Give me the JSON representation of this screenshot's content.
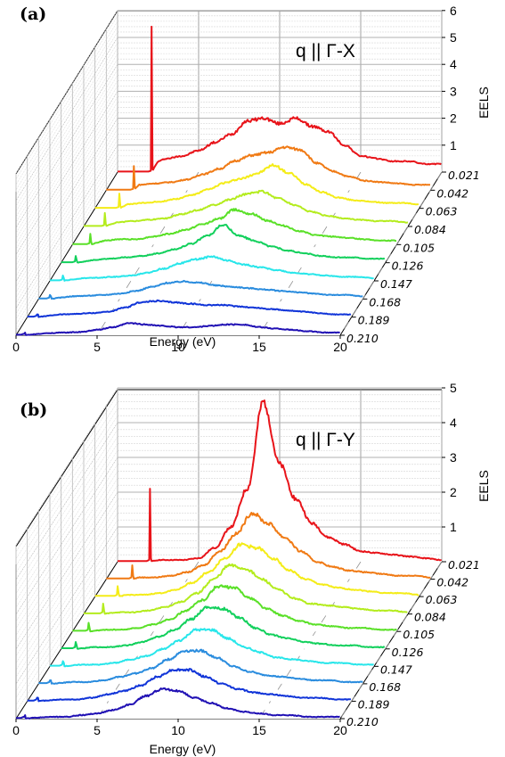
{
  "chart_data": [
    {
      "type": "line",
      "panel_label": "(a)",
      "annotation": "q || Γ-X",
      "xlabel": "Energy (eV)",
      "ylabel": "EELS",
      "zlabel": "",
      "xlim": [
        0,
        20
      ],
      "ylim": [
        0,
        6
      ],
      "x_ticks": [
        "0",
        "5",
        "10",
        "15",
        "20"
      ],
      "y_ticks": [
        "1",
        "2",
        "3",
        "4",
        "5",
        "6"
      ],
      "q_ticks": [
        "0.021",
        "0.042",
        "0.063",
        "0.084",
        "0.105",
        "0.126",
        "0.147",
        "0.168",
        "0.189",
        "0.210"
      ],
      "series": [
        {
          "q": 0.021,
          "color": "#e8141a",
          "sharp_peak": {
            "x": 2.1,
            "y": 5.4
          },
          "x": [
            2.5,
            3,
            4,
            5,
            6,
            7,
            8,
            9,
            10,
            11,
            12,
            13,
            14,
            15,
            16,
            17,
            18,
            19,
            20
          ],
          "values": [
            0.4,
            0.5,
            0.6,
            0.8,
            1.1,
            1.4,
            1.9,
            2.0,
            1.8,
            2.0,
            1.7,
            1.5,
            1.0,
            0.6,
            0.5,
            0.4,
            0.4,
            0.3,
            0.3
          ]
        },
        {
          "q": 0.042,
          "color": "#f07a14",
          "sharp_peak": {
            "x": 1.7,
            "y": 0.9
          },
          "x": [
            2,
            3,
            4,
            5,
            6,
            7,
            8,
            9,
            10,
            11,
            12,
            13,
            14,
            15,
            16,
            17,
            18,
            19,
            20
          ],
          "values": [
            0.2,
            0.25,
            0.3,
            0.4,
            0.6,
            0.8,
            1.1,
            1.3,
            1.4,
            1.6,
            1.5,
            1.0,
            0.7,
            0.5,
            0.35,
            0.3,
            0.25,
            0.2,
            0.2
          ]
        },
        {
          "q": 0.063,
          "color": "#f4ec18",
          "sharp_peak": {
            "x": 1.5,
            "y": 0.55
          },
          "x": [
            2,
            3,
            4,
            5,
            6,
            7,
            8,
            9,
            10,
            11,
            12,
            13,
            14,
            15,
            16,
            17,
            18,
            19,
            20
          ],
          "values": [
            0.15,
            0.2,
            0.25,
            0.35,
            0.5,
            0.7,
            0.95,
            1.1,
            1.3,
            1.6,
            1.3,
            0.9,
            0.6,
            0.4,
            0.3,
            0.25,
            0.2,
            0.2,
            0.15
          ]
        },
        {
          "q": 0.084,
          "color": "#b4ec1e",
          "sharp_peak": {
            "x": 1.3,
            "y": 0.5
          },
          "x": [
            2,
            3,
            4,
            5,
            6,
            7,
            8,
            9,
            10,
            11,
            12,
            13,
            14,
            15,
            16,
            17,
            18,
            19,
            20
          ],
          "values": [
            0.15,
            0.2,
            0.25,
            0.3,
            0.45,
            0.6,
            0.8,
            1.0,
            1.2,
            1.3,
            1.05,
            0.8,
            0.55,
            0.4,
            0.3,
            0.25,
            0.2,
            0.2,
            0.15
          ]
        },
        {
          "q": 0.105,
          "color": "#5ae028",
          "sharp_peak": {
            "x": 1.1,
            "y": 0.4
          },
          "x": [
            2,
            3,
            4,
            5,
            6,
            7,
            8,
            9,
            10,
            11,
            12,
            13,
            14,
            15,
            16,
            17,
            18,
            19,
            20
          ],
          "values": [
            0.15,
            0.2,
            0.2,
            0.3,
            0.4,
            0.55,
            0.75,
            0.95,
            1.3,
            1.15,
            0.9,
            0.7,
            0.5,
            0.35,
            0.3,
            0.25,
            0.2,
            0.15,
            0.15
          ]
        },
        {
          "q": 0.126,
          "color": "#12d05c",
          "sharp_peak": {
            "x": 0.9,
            "y": 0.25
          },
          "x": [
            2,
            3,
            4,
            5,
            6,
            7,
            8,
            9,
            10,
            11,
            12,
            13,
            14,
            15,
            16,
            17,
            18,
            19,
            20
          ],
          "values": [
            0.1,
            0.15,
            0.2,
            0.25,
            0.35,
            0.5,
            0.7,
            1.0,
            1.4,
            1.0,
            0.8,
            0.6,
            0.45,
            0.35,
            0.25,
            0.2,
            0.2,
            0.15,
            0.15
          ]
        },
        {
          "q": 0.147,
          "color": "#28e6ea",
          "sharp_peak": {
            "x": 0.8,
            "y": 0.2
          },
          "x": [
            2,
            3,
            4,
            5,
            6,
            7,
            8,
            9,
            10,
            11,
            12,
            13,
            14,
            15,
            16,
            17,
            18,
            19,
            20
          ],
          "values": [
            0.1,
            0.12,
            0.15,
            0.2,
            0.3,
            0.45,
            0.65,
            0.8,
            0.9,
            0.75,
            0.6,
            0.5,
            0.4,
            0.3,
            0.25,
            0.2,
            0.15,
            0.15,
            0.1
          ]
        },
        {
          "q": 0.168,
          "color": "#2a8cde",
          "sharp_peak": {
            "x": 0.7,
            "y": 0.15
          },
          "x": [
            2,
            3,
            4,
            5,
            6,
            7,
            8,
            9,
            10,
            11,
            12,
            13,
            14,
            15,
            16,
            17,
            18,
            19,
            20
          ],
          "values": [
            0.1,
            0.12,
            0.15,
            0.2,
            0.3,
            0.45,
            0.6,
            0.65,
            0.6,
            0.5,
            0.45,
            0.4,
            0.35,
            0.3,
            0.25,
            0.2,
            0.15,
            0.15,
            0.1
          ]
        },
        {
          "q": 0.189,
          "color": "#1034d8",
          "sharp_peak": {
            "x": 0.6,
            "y": 0.1
          },
          "x": [
            2,
            3,
            4,
            5,
            6,
            7,
            8,
            9,
            10,
            11,
            12,
            13,
            14,
            15,
            16,
            17,
            18,
            19,
            20
          ],
          "values": [
            0.1,
            0.12,
            0.15,
            0.2,
            0.35,
            0.55,
            0.6,
            0.55,
            0.5,
            0.45,
            0.45,
            0.4,
            0.35,
            0.3,
            0.25,
            0.2,
            0.15,
            0.1,
            0.1
          ]
        },
        {
          "q": 0.21,
          "color": "#2010b4",
          "sharp_peak": {
            "x": 0.5,
            "y": 0.05
          },
          "x": [
            2,
            3,
            4,
            5,
            6,
            7,
            8,
            9,
            10,
            11,
            12,
            13,
            14,
            15,
            16,
            17,
            18,
            19,
            20
          ],
          "values": [
            0.08,
            0.1,
            0.12,
            0.2,
            0.3,
            0.45,
            0.4,
            0.35,
            0.3,
            0.3,
            0.35,
            0.4,
            0.4,
            0.3,
            0.25,
            0.2,
            0.15,
            0.1,
            0.1
          ]
        }
      ]
    },
    {
      "type": "line",
      "panel_label": "(b)",
      "annotation": "q || Γ-Y",
      "xlabel": "Energy (eV)",
      "ylabel": "EELS",
      "zlabel": "",
      "xlim": [
        0,
        20
      ],
      "ylim": [
        0,
        5
      ],
      "x_ticks": [
        "0",
        "5",
        "10",
        "15",
        "20"
      ],
      "y_ticks": [
        "1",
        "2",
        "3",
        "4",
        "5"
      ],
      "q_ticks": [
        "0.021",
        "0.042",
        "0.063",
        "0.084",
        "0.105",
        "0.126",
        "0.147",
        "0.168",
        "0.189",
        "0.210"
      ],
      "series": [
        {
          "q": 0.021,
          "color": "#e8141a",
          "sharp_peak": {
            "x": 2.0,
            "y": 2.1
          },
          "x": [
            2.5,
            3,
            4,
            5,
            6,
            7,
            8,
            9,
            10,
            11,
            12,
            13,
            14,
            15,
            16,
            17,
            18,
            19,
            20
          ],
          "values": [
            0.05,
            0.05,
            0.05,
            0.1,
            0.4,
            1.0,
            2.1,
            4.6,
            2.8,
            1.8,
            1.1,
            0.7,
            0.5,
            0.3,
            0.25,
            0.2,
            0.15,
            0.1,
            0.05
          ]
        },
        {
          "q": 0.042,
          "color": "#f07a14",
          "sharp_peak": {
            "x": 1.6,
            "y": 0.4
          },
          "x": [
            2,
            3,
            4,
            5,
            6,
            7,
            8,
            9,
            10,
            11,
            12,
            13,
            14,
            15,
            16,
            17,
            18,
            19,
            20
          ],
          "values": [
            0.05,
            0.05,
            0.1,
            0.2,
            0.4,
            0.8,
            1.3,
            1.9,
            1.6,
            1.2,
            0.8,
            0.5,
            0.35,
            0.25,
            0.2,
            0.15,
            0.1,
            0.1,
            0.05
          ]
        },
        {
          "q": 0.063,
          "color": "#f4ec18",
          "sharp_peak": {
            "x": 1.4,
            "y": 0.3
          },
          "x": [
            2,
            3,
            4,
            5,
            6,
            7,
            8,
            9,
            10,
            11,
            12,
            13,
            14,
            15,
            16,
            17,
            18,
            19,
            20
          ],
          "values": [
            0.05,
            0.05,
            0.1,
            0.2,
            0.4,
            0.7,
            1.1,
            1.5,
            1.4,
            1.1,
            0.75,
            0.5,
            0.35,
            0.25,
            0.2,
            0.15,
            0.1,
            0.1,
            0.05
          ]
        },
        {
          "q": 0.084,
          "color": "#b4ec1e",
          "sharp_peak": {
            "x": 1.2,
            "y": 0.3
          },
          "x": [
            2,
            3,
            4,
            5,
            6,
            7,
            8,
            9,
            10,
            11,
            12,
            13,
            14,
            15,
            16,
            17,
            18,
            19,
            20
          ],
          "values": [
            0.05,
            0.05,
            0.1,
            0.2,
            0.35,
            0.6,
            1.0,
            1.4,
            1.3,
            1.0,
            0.7,
            0.45,
            0.3,
            0.25,
            0.2,
            0.15,
            0.1,
            0.1,
            0.05
          ]
        },
        {
          "q": 0.105,
          "color": "#5ae028",
          "sharp_peak": {
            "x": 1.0,
            "y": 0.25
          },
          "x": [
            2,
            3,
            4,
            5,
            6,
            7,
            8,
            9,
            10,
            11,
            12,
            13,
            14,
            15,
            16,
            17,
            18,
            19,
            20
          ],
          "values": [
            0.05,
            0.05,
            0.1,
            0.2,
            0.35,
            0.6,
            0.9,
            1.3,
            1.25,
            0.95,
            0.65,
            0.45,
            0.3,
            0.2,
            0.15,
            0.1,
            0.1,
            0.05,
            0.05
          ]
        },
        {
          "q": 0.126,
          "color": "#12d05c",
          "sharp_peak": {
            "x": 0.9,
            "y": 0.2
          },
          "x": [
            2,
            3,
            4,
            5,
            6,
            7,
            8,
            9,
            10,
            11,
            12,
            13,
            14,
            15,
            16,
            17,
            18,
            19,
            20
          ],
          "values": [
            0.05,
            0.05,
            0.1,
            0.2,
            0.35,
            0.55,
            0.85,
            1.2,
            1.15,
            0.9,
            0.6,
            0.4,
            0.3,
            0.2,
            0.15,
            0.1,
            0.1,
            0.05,
            0.05
          ]
        },
        {
          "q": 0.147,
          "color": "#28e6ea",
          "sharp_peak": {
            "x": 0.8,
            "y": 0.15
          },
          "x": [
            2,
            3,
            4,
            5,
            6,
            7,
            8,
            9,
            10,
            11,
            12,
            13,
            14,
            15,
            16,
            17,
            18,
            19,
            20
          ],
          "values": [
            0.05,
            0.05,
            0.1,
            0.2,
            0.3,
            0.5,
            0.75,
            1.05,
            1.05,
            0.8,
            0.55,
            0.4,
            0.25,
            0.2,
            0.15,
            0.1,
            0.1,
            0.05,
            0.05
          ]
        },
        {
          "q": 0.168,
          "color": "#2a8cde",
          "sharp_peak": {
            "x": 0.7,
            "y": 0.1
          },
          "x": [
            2,
            3,
            4,
            5,
            6,
            7,
            8,
            9,
            10,
            11,
            12,
            13,
            14,
            15,
            16,
            17,
            18,
            19,
            20
          ],
          "values": [
            0.05,
            0.05,
            0.1,
            0.2,
            0.3,
            0.45,
            0.7,
            0.95,
            0.95,
            0.75,
            0.5,
            0.35,
            0.25,
            0.2,
            0.15,
            0.1,
            0.1,
            0.05,
            0.05
          ]
        },
        {
          "q": 0.189,
          "color": "#1034d8",
          "sharp_peak": {
            "x": 0.6,
            "y": 0.1
          },
          "x": [
            2,
            3,
            4,
            5,
            6,
            7,
            8,
            9,
            10,
            11,
            12,
            13,
            14,
            15,
            16,
            17,
            18,
            19,
            20
          ],
          "values": [
            0.05,
            0.05,
            0.1,
            0.2,
            0.3,
            0.45,
            0.7,
            0.9,
            0.9,
            0.7,
            0.5,
            0.35,
            0.25,
            0.2,
            0.15,
            0.1,
            0.1,
            0.05,
            0.05
          ]
        },
        {
          "q": 0.21,
          "color": "#2010b4",
          "sharp_peak": {
            "x": 0.5,
            "y": 0.05
          },
          "x": [
            2,
            3,
            4,
            5,
            6,
            7,
            8,
            9,
            10,
            11,
            12,
            13,
            14,
            15,
            16,
            17,
            18,
            19,
            20
          ],
          "values": [
            0.05,
            0.05,
            0.1,
            0.15,
            0.25,
            0.4,
            0.65,
            0.85,
            0.8,
            0.6,
            0.45,
            0.3,
            0.2,
            0.15,
            0.1,
            0.1,
            0.05,
            0.05,
            0.05
          ]
        }
      ]
    }
  ]
}
